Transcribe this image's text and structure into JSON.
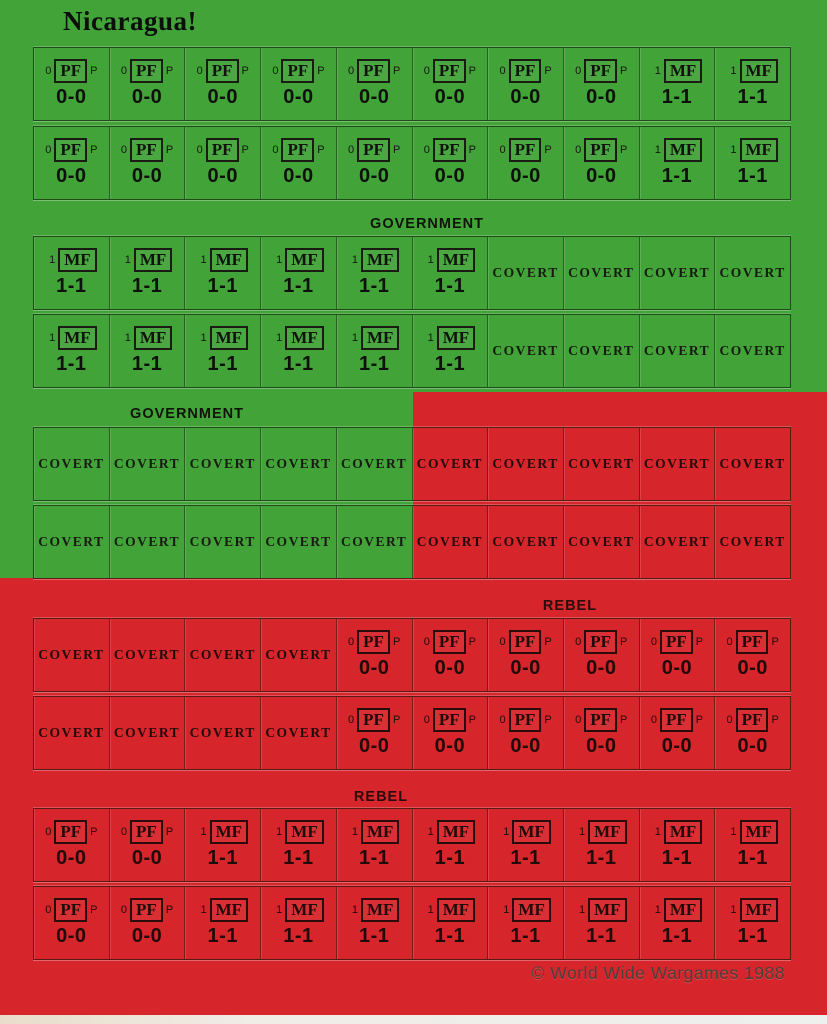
{
  "title": "Nicaragua!",
  "copyright": "© World Wide Wargames 1988",
  "colors": {
    "green": "#41a338",
    "red": "#d6252b"
  },
  "labels": {
    "government": "GOVERNMENT",
    "rebel": "REBEL"
  },
  "counter_defs": {
    "pf": {
      "prefix": "0",
      "code": "PF",
      "suffix": "P",
      "strength": "0-0"
    },
    "mf": {
      "prefix": "1",
      "code": "MF",
      "suffix": "",
      "strength": "1-1"
    },
    "covert": {
      "text": "COVERT"
    }
  },
  "rows": [
    [
      "pf:g",
      "pf:g",
      "pf:g",
      "pf:g",
      "pf:g",
      "pf:g",
      "pf:g",
      "pf:g",
      "mf:g",
      "mf:g"
    ],
    [
      "pf:g",
      "pf:g",
      "pf:g",
      "pf:g",
      "pf:g",
      "pf:g",
      "pf:g",
      "pf:g",
      "mf:g",
      "mf:g"
    ],
    [
      "mf:g",
      "mf:g",
      "mf:g",
      "mf:g",
      "mf:g",
      "mf:g",
      "cv:g",
      "cv:g",
      "cv:g",
      "cv:g"
    ],
    [
      "mf:g",
      "mf:g",
      "mf:g",
      "mf:g",
      "mf:g",
      "mf:g",
      "cv:g",
      "cv:g",
      "cv:g",
      "cv:g"
    ],
    [
      "cv:g",
      "cv:g",
      "cv:g",
      "cv:g",
      "cv:g",
      "cv:r",
      "cv:r",
      "cv:r",
      "cv:r",
      "cv:r"
    ],
    [
      "cv:g",
      "cv:g",
      "cv:g",
      "cv:g",
      "cv:g",
      "cv:r",
      "cv:r",
      "cv:r",
      "cv:r",
      "cv:r"
    ],
    [
      "cv:r",
      "cv:r",
      "cv:r",
      "cv:r",
      "pf:r",
      "pf:r",
      "pf:r",
      "pf:r",
      "pf:r",
      "pf:r"
    ],
    [
      "cv:r",
      "cv:r",
      "cv:r",
      "cv:r",
      "pf:r",
      "pf:r",
      "pf:r",
      "pf:r",
      "pf:r",
      "pf:r"
    ],
    [
      "pf:r",
      "pf:r",
      "mf:r",
      "mf:r",
      "mf:r",
      "mf:r",
      "mf:r",
      "mf:r",
      "mf:r",
      "mf:r"
    ],
    [
      "pf:r",
      "pf:r",
      "mf:r",
      "mf:r",
      "mf:r",
      "mf:r",
      "mf:r",
      "mf:r",
      "mf:r",
      "mf:r"
    ]
  ]
}
